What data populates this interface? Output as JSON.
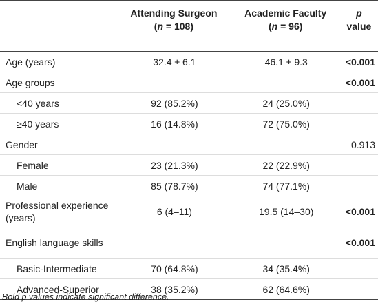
{
  "table": {
    "header": {
      "columns": [
        {
          "title": "Attending Surgeon",
          "open": "(",
          "n": "n",
          "rest": " = 108)"
        },
        {
          "title": "Academic Faculty",
          "open": "(",
          "n": "n",
          "rest": " = 96)"
        }
      ],
      "p": {
        "symbol": "p",
        "word": "value"
      }
    },
    "sections": [
      {
        "label": "Age (years)",
        "values": [
          "32.4 ± 6.1",
          "46.1 ± 9.3",
          "<0.001"
        ],
        "rows": []
      },
      {
        "label": "Age groups",
        "values": [
          "",
          "",
          "<0.001"
        ],
        "rows": [
          {
            "label": "<40 years",
            "values": [
              "92 (85.2%)",
              "24 (25.0%)",
              ""
            ]
          },
          {
            "label": "≥40 years",
            "values": [
              "16 (14.8%)",
              "72 (75.0%)",
              ""
            ]
          }
        ]
      },
      {
        "label": "Gender",
        "values": [
          "",
          "",
          "0.913"
        ],
        "rows": [
          {
            "label": "Female",
            "values": [
              "23 (21.3%)",
              "22 (22.9%)",
              ""
            ]
          },
          {
            "label": "Male",
            "values": [
              "85 (78.7%)",
              "74 (77.1%)",
              ""
            ]
          }
        ]
      },
      {
        "label": "Professional experience (years)",
        "values": [
          "6 (4–11)",
          "19.5 (14–30)",
          "<0.001"
        ],
        "rows": []
      },
      {
        "label": "English language skills",
        "values": [
          "",
          "",
          "<0.001"
        ],
        "rows": [
          {
            "label": "Basic-Intermediate",
            "values": [
              "70 (64.8%)",
              "34 (35.4%)",
              ""
            ]
          },
          {
            "label": "Advanced-Superior",
            "values": [
              "38 (35.2%)",
              "62 (64.6%)",
              ""
            ]
          }
        ]
      }
    ],
    "footnote": "Bold p values indicate significant difference."
  }
}
